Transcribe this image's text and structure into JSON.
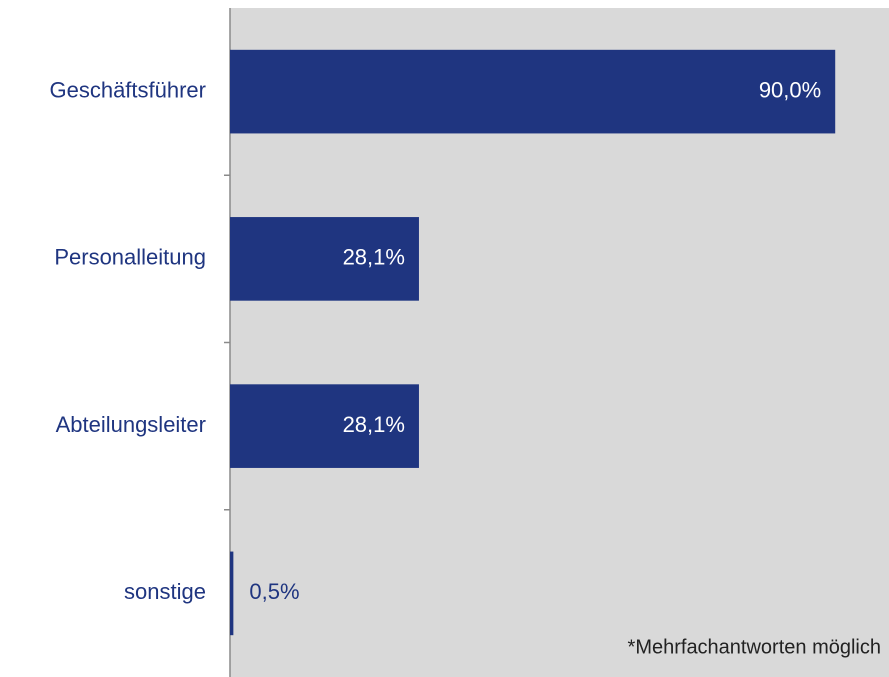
{
  "chart_data": {
    "type": "barh",
    "categories": [
      "Geschäftsführer",
      "Personalleitung",
      "Abteilungsleiter",
      "sonstige"
    ],
    "values": [
      90.0,
      28.1,
      28.1,
      0.5
    ],
    "value_labels": [
      "90,0%",
      "28,1%",
      "28,1%",
      "0,5%"
    ],
    "color": "#1f3580",
    "xlim": [
      0,
      98
    ],
    "annotation": "*Mehrfachantworten möglich"
  }
}
